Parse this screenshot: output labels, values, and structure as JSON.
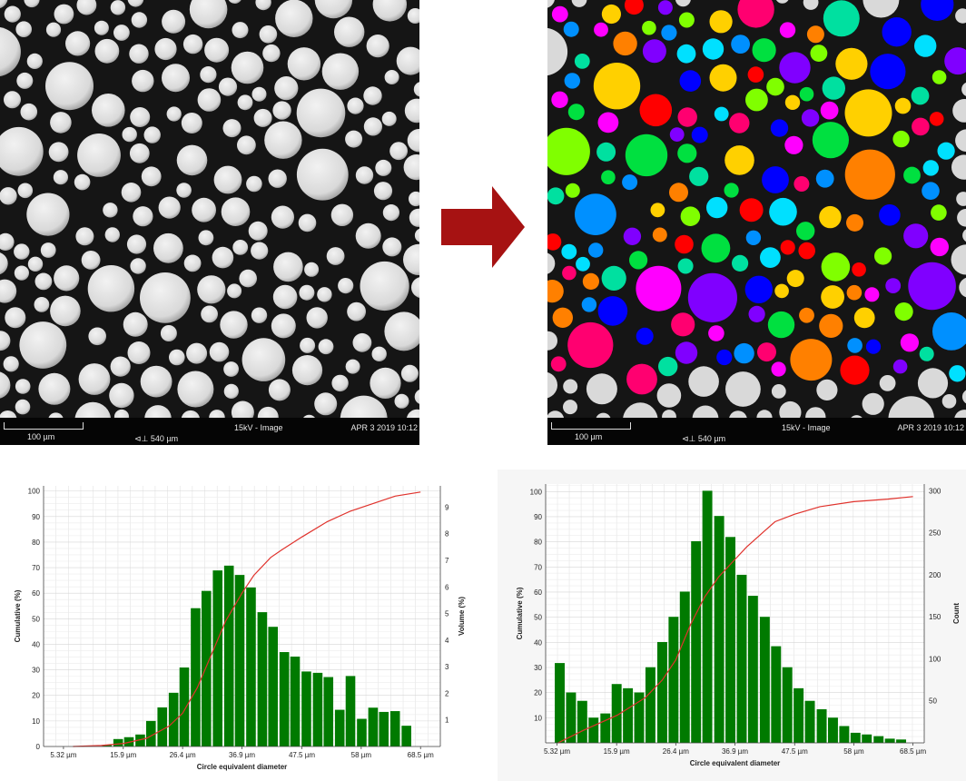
{
  "sem_images": {
    "left": {
      "scale_bar": "100 µm",
      "field_width": "540 µm",
      "hfw_icon": "horizontal-field-width-icon",
      "voltage": "15kV - Image",
      "date": "APR 3 2019 10:12"
    },
    "right": {
      "scale_bar": "100 µm",
      "field_width": "540 µm",
      "hfw_icon": "horizontal-field-width-icon",
      "voltage": "15kV - Image",
      "date": "APR 3 2019 10:12"
    },
    "arrow_color": "#a61212",
    "arrow_icon": "right-arrow-icon",
    "particle_color": "#d9d9d9",
    "segmentation_palette": [
      "#ff0000",
      "#ff8000",
      "#ffd000",
      "#80ff00",
      "#00e040",
      "#00e0a0",
      "#00e0ff",
      "#0090ff",
      "#0000ff",
      "#8000ff",
      "#ff00ff",
      "#ff0070"
    ]
  },
  "chart_data": [
    {
      "type": "bar",
      "xlabel": "Circle equivalent diameter",
      "ylabel": "Cumulative (%)",
      "y2label": "Volume (%)",
      "x_ticks": [
        "5.32 µm",
        "15.9 µm",
        "26.4 µm",
        "36.9 µm",
        "47.5 µm",
        "58 µm",
        "68.5 µm"
      ],
      "x_tick_values": [
        5.32,
        15.9,
        26.4,
        36.9,
        47.5,
        58,
        68.5
      ],
      "xlim": [
        1.8,
        72
      ],
      "ylim": [
        0,
        102
      ],
      "y_ticks": [
        0,
        10,
        20,
        30,
        40,
        50,
        60,
        70,
        80,
        90,
        100
      ],
      "y2lim": [
        0,
        9.8
      ],
      "y2_ticks": [
        1,
        2,
        3,
        4,
        5,
        6,
        7,
        8,
        9
      ],
      "grid": true,
      "bar_color": "#007a00",
      "line_color": "#e0322c",
      "bin_width": 1.96,
      "bin_centers": [
        13.0,
        15.0,
        16.9,
        18.9,
        20.8,
        22.8,
        24.8,
        26.7,
        28.7,
        30.6,
        32.6,
        34.6,
        36.5,
        38.5,
        40.5,
        42.4,
        44.4,
        46.3,
        48.3,
        50.3,
        52.2,
        54.2,
        56.1,
        58.1,
        60.1,
        62.0,
        64.0,
        66.0
      ],
      "volume_percent": [
        0.05,
        0.28,
        0.35,
        0.45,
        0.96,
        1.47,
        2.02,
        2.97,
        5.2,
        5.85,
        6.62,
        6.8,
        6.45,
        5.98,
        5.05,
        4.5,
        3.55,
        3.38,
        2.82,
        2.77,
        2.61,
        1.38,
        2.65,
        1.04,
        1.46,
        1.3,
        1.33,
        0.78
      ],
      "cumulative_percent": {
        "x": [
          7,
          12,
          16,
          20,
          24,
          26.4,
          29,
          31.5,
          34,
          36.9,
          39,
          42,
          44,
          47.5,
          52,
          56,
          60,
          64,
          68.5
        ],
        "y": [
          0,
          0.4,
          1.2,
          3.2,
          8,
          13,
          23,
          36,
          49,
          60,
          67,
          74,
          77,
          82,
          88,
          92,
          95,
          98,
          99.6
        ]
      }
    },
    {
      "type": "bar",
      "xlabel": "Circle equivalent diameter",
      "ylabel": "Cumulative (%)",
      "y2label": "Count",
      "x_ticks": [
        "5.32 µm",
        "15.9 µm",
        "26.4 µm",
        "36.9 µm",
        "47.5 µm",
        "58 µm",
        "68.5 µm"
      ],
      "x_tick_values": [
        5.32,
        15.9,
        26.4,
        36.9,
        47.5,
        58,
        68.5
      ],
      "xlim": [
        3.3,
        70.5
      ],
      "ylim": [
        0,
        103
      ],
      "y_ticks": [
        10,
        20,
        30,
        40,
        50,
        60,
        70,
        80,
        90,
        100
      ],
      "y2lim": [
        0,
        308
      ],
      "y2_ticks": [
        50,
        100,
        150,
        200,
        250,
        300
      ],
      "grid": true,
      "bar_color": "#007a00",
      "line_color": "#e0322c",
      "bin_width": 2.02,
      "bin_centers": [
        5.8,
        7.8,
        9.8,
        11.8,
        13.9,
        15.9,
        17.9,
        19.9,
        21.9,
        24.0,
        26.0,
        28.0,
        30.0,
        32.0,
        34.1,
        36.1,
        38.1,
        40.1,
        42.2,
        44.2,
        46.2,
        48.2,
        50.2,
        52.3,
        54.3,
        56.3,
        58.3,
        60.3,
        62.4,
        64.4,
        66.4
      ],
      "count": [
        95,
        60,
        50,
        30,
        35,
        70,
        65,
        60,
        90,
        120,
        150,
        180,
        240,
        300,
        270,
        245,
        200,
        175,
        150,
        115,
        90,
        65,
        50,
        40,
        30,
        20,
        12,
        10,
        8,
        5,
        4
      ],
      "cumulative_percent": {
        "x": [
          5.5,
          10,
          16,
          21,
          24,
          26.4,
          29,
          31.5,
          34,
          36.9,
          39,
          42,
          44,
          47.5,
          52,
          58,
          64,
          68.5
        ],
        "y": [
          0,
          5,
          11,
          18,
          25,
          33,
          47,
          58,
          66,
          73,
          78,
          84,
          88,
          91,
          94,
          96,
          97,
          98
        ]
      }
    }
  ]
}
